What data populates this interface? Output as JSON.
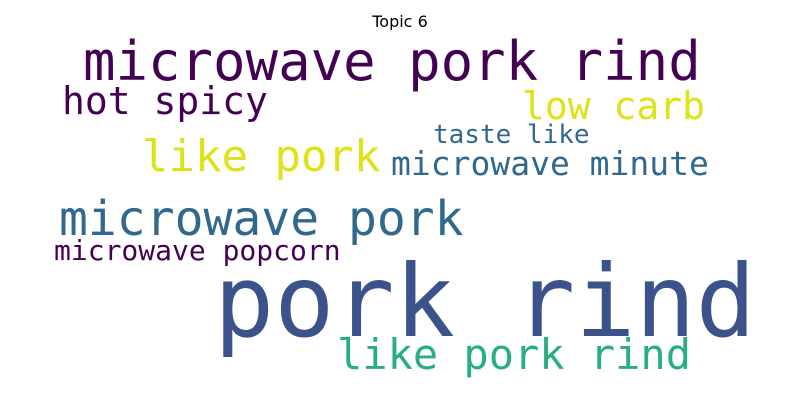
{
  "title": "Topic 6",
  "words": [
    {
      "id": "microwave-pork-rind",
      "text": "microwave pork rind",
      "color": "#440154"
    },
    {
      "id": "hot-spicy",
      "text": "hot spicy",
      "color": "#440154"
    },
    {
      "id": "low-carb",
      "text": "low carb",
      "color": "#dde318"
    },
    {
      "id": "taste-like",
      "text": "taste like",
      "color": "#31688e"
    },
    {
      "id": "like-pork",
      "text": "like pork",
      "color": "#dde318"
    },
    {
      "id": "microwave-minute",
      "text": "microwave minute",
      "color": "#31688e"
    },
    {
      "id": "microwave-pork",
      "text": "microwave pork",
      "color": "#31688e"
    },
    {
      "id": "microwave-popcorn",
      "text": "microwave popcorn",
      "color": "#440154"
    },
    {
      "id": "pork-rind",
      "text": "pork rind",
      "color": "#3b528b"
    },
    {
      "id": "like-pork-rind",
      "text": "like pork rind",
      "color": "#29af7f"
    }
  ]
}
